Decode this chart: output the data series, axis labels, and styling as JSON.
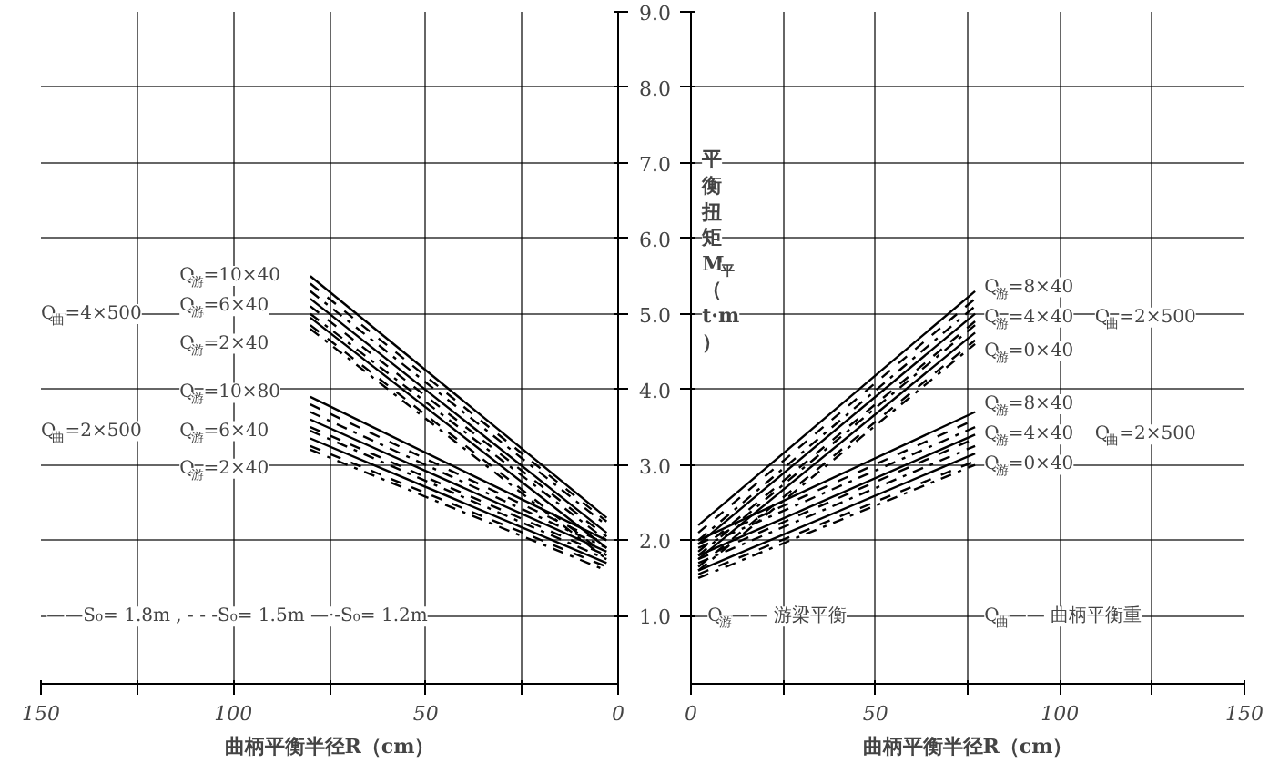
{
  "chart_data": [
    {
      "type": "line",
      "xlabel": "曲柄平衡半径R（cm）",
      "xlim": [
        150,
        0
      ],
      "ylim": [
        0.1,
        9.0
      ],
      "xticks": [
        150,
        {
          "value": 125,
          "label": null
        },
        100,
        {
          "value": 75,
          "label": null
        },
        50,
        {
          "value": 25,
          "label": null
        },
        0
      ],
      "yticks": [
        1,
        2,
        3,
        4,
        5,
        6,
        7,
        8,
        9
      ],
      "tick_labels": "x",
      "grid": true,
      "series": [
        {
          "color": "#000000",
          "line_style": "solid",
          "x": [
            80,
            3
          ],
          "values": [
            5.5,
            2.3
          ]
        },
        {
          "color": "#000000",
          "line_style": "dashed",
          "x": [
            80,
            3
          ],
          "values": [
            5.4,
            2.25
          ]
        },
        {
          "color": "#000000",
          "line_style": "dashdot",
          "x": [
            80,
            3
          ],
          "values": [
            5.3,
            2.2
          ]
        },
        {
          "color": "#000000",
          "line_style": "solid",
          "x": [
            80,
            3
          ],
          "values": [
            5.2,
            2.1
          ]
        },
        {
          "color": "#000000",
          "line_style": "dashed",
          "x": [
            80,
            3
          ],
          "values": [
            5.1,
            2.05
          ]
        },
        {
          "color": "#000000",
          "line_style": "dashdot",
          "x": [
            80,
            3
          ],
          "values": [
            5.0,
            2.0
          ]
        },
        {
          "color": "#000000",
          "line_style": "solid",
          "x": [
            80,
            3
          ],
          "values": [
            4.95,
            1.9
          ]
        },
        {
          "color": "#000000",
          "line_style": "dashed",
          "x": [
            80,
            3
          ],
          "values": [
            4.85,
            1.8
          ]
        },
        {
          "color": "#000000",
          "line_style": "dashdot",
          "x": [
            80,
            3
          ],
          "values": [
            4.8,
            1.75
          ]
        },
        {
          "color": "#000000",
          "line_style": "solid",
          "x": [
            80,
            3
          ],
          "values": [
            3.9,
            2.0
          ]
        },
        {
          "color": "#000000",
          "line_style": "dashed",
          "x": [
            80,
            3
          ],
          "values": [
            3.8,
            1.95
          ]
        },
        {
          "color": "#000000",
          "line_style": "dashdot",
          "x": [
            80,
            3
          ],
          "values": [
            3.7,
            1.9
          ]
        },
        {
          "color": "#000000",
          "line_style": "solid",
          "x": [
            80,
            3
          ],
          "values": [
            3.6,
            1.85
          ]
        },
        {
          "color": "#000000",
          "line_style": "dashed",
          "x": [
            80,
            3
          ],
          "values": [
            3.5,
            1.8
          ]
        },
        {
          "color": "#000000",
          "line_style": "dashdot",
          "x": [
            80,
            3
          ],
          "values": [
            3.45,
            1.75
          ]
        },
        {
          "color": "#000000",
          "line_style": "solid",
          "x": [
            80,
            3
          ],
          "values": [
            3.35,
            1.7
          ]
        },
        {
          "color": "#000000",
          "line_style": "dashed",
          "x": [
            80,
            3
          ],
          "values": [
            3.25,
            1.65
          ]
        },
        {
          "color": "#000000",
          "line_style": "dashdot",
          "x": [
            80,
            3
          ],
          "values": [
            3.2,
            1.6
          ]
        }
      ],
      "annotations": [
        "Q$_{曲}$=4×500",
        "Q$_{游}$=10×40",
        "Q$_{游}$=6×40",
        "Q$_{游}$=2×40",
        "Q$_{曲}$=2×500",
        "Q$_{游}$=10×80",
        "Q$_{游}$=6×40",
        "Q$_{游}$=2×40",
        "——S₀= 1.8m , - - -S₀= 1.5m —·-S₀= 1.2m"
      ]
    },
    {
      "type": "line",
      "xlabel": "曲柄平衡半径R（cm）",
      "ylabel": "平衡扭矩M$_{平}$（t·m）",
      "xlim": [
        0,
        150
      ],
      "ylim": [
        0.1,
        9.0
      ],
      "xticks": [
        0,
        {
          "value": 25,
          "label": null
        },
        50,
        {
          "value": 75,
          "label": null
        },
        100,
        {
          "value": 125,
          "label": null
        },
        150
      ],
      "yticks": [
        {
          "value": 1,
          "label": "1.0"
        },
        {
          "value": 2,
          "label": "2.0"
        },
        {
          "value": 3,
          "label": "3.0"
        },
        {
          "value": 4,
          "label": "4.0"
        },
        {
          "value": 5,
          "label": "5.0"
        },
        {
          "value": 6,
          "label": "6.0"
        },
        {
          "value": 7,
          "label": "7.0"
        },
        {
          "value": 8,
          "label": "8.0"
        },
        {
          "value": 9,
          "label": "9.0"
        }
      ],
      "grid": true,
      "series": [
        {
          "color": "#000000",
          "line_style": "solid",
          "x": [
            2,
            77
          ],
          "values": [
            2.2,
            5.3
          ]
        },
        {
          "color": "#000000",
          "line_style": "dashed",
          "x": [
            2,
            77
          ],
          "values": [
            2.1,
            5.2
          ]
        },
        {
          "color": "#000000",
          "line_style": "dashdot",
          "x": [
            2,
            77
          ],
          "values": [
            2.0,
            5.1
          ]
        },
        {
          "color": "#000000",
          "line_style": "solid",
          "x": [
            2,
            77
          ],
          "values": [
            1.95,
            5.0
          ]
        },
        {
          "color": "#000000",
          "line_style": "dashed",
          "x": [
            2,
            77
          ],
          "values": [
            1.85,
            4.9
          ]
        },
        {
          "color": "#000000",
          "line_style": "dashdot",
          "x": [
            2,
            77
          ],
          "values": [
            1.8,
            4.85
          ]
        },
        {
          "color": "#000000",
          "line_style": "solid",
          "x": [
            2,
            77
          ],
          "values": [
            1.75,
            4.75
          ]
        },
        {
          "color": "#000000",
          "line_style": "dashed",
          "x": [
            2,
            77
          ],
          "values": [
            1.65,
            4.65
          ]
        },
        {
          "color": "#000000",
          "line_style": "dashdot",
          "x": [
            2,
            77
          ],
          "values": [
            1.6,
            4.6
          ]
        },
        {
          "color": "#000000",
          "line_style": "solid",
          "x": [
            2,
            77
          ],
          "values": [
            2.0,
            3.7
          ]
        },
        {
          "color": "#000000",
          "line_style": "dashed",
          "x": [
            2,
            77
          ],
          "values": [
            1.95,
            3.6
          ]
        },
        {
          "color": "#000000",
          "line_style": "dashdot",
          "x": [
            2,
            77
          ],
          "values": [
            1.9,
            3.5
          ]
        },
        {
          "color": "#000000",
          "line_style": "solid",
          "x": [
            2,
            77
          ],
          "values": [
            1.8,
            3.4
          ]
        },
        {
          "color": "#000000",
          "line_style": "dashed",
          "x": [
            2,
            77
          ],
          "values": [
            1.75,
            3.35
          ]
        },
        {
          "color": "#000000",
          "line_style": "dashdot",
          "x": [
            2,
            77
          ],
          "values": [
            1.7,
            3.25
          ]
        },
        {
          "color": "#000000",
          "line_style": "solid",
          "x": [
            2,
            77
          ],
          "values": [
            1.6,
            3.15
          ]
        },
        {
          "color": "#000000",
          "line_style": "dashed",
          "x": [
            2,
            77
          ],
          "values": [
            1.55,
            3.05
          ]
        },
        {
          "color": "#000000",
          "line_style": "dashdot",
          "x": [
            2,
            77
          ],
          "values": [
            1.5,
            3.0
          ]
        }
      ],
      "annotations": [
        "Q$_{游}$=8×40",
        "Q$_{游}$=4×40",
        "Q$_{游}$=0×40",
        "Q$_{曲}$=2×500",
        "Q$_{游}$=8×40",
        "Q$_{游}$=4×40",
        "Q$_{游}$=0×40",
        "Q$_{曲}$=2×500",
        "Q$_{游}$—— 游梁平衡",
        "Q$_{曲}$—— 曲柄平衡重"
      ]
    }
  ]
}
